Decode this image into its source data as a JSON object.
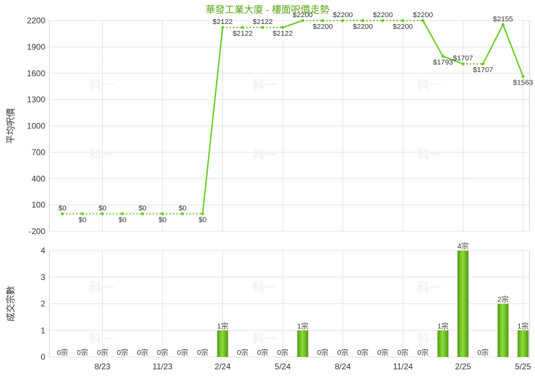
{
  "chart_data": [
    {
      "type": "line",
      "title": "華發工業大廈 - 樓面呎價走勢",
      "ylabel": "平均呎價",
      "ylim": [
        -200,
        2200
      ],
      "yticks": [
        -200,
        100,
        400,
        700,
        1000,
        1300,
        1600,
        1900,
        2200
      ],
      "xticks": [
        "8/23",
        "11/23",
        "2/24",
        "5/24",
        "8/24",
        "11/24",
        "2/25",
        "5/25"
      ],
      "grid": true,
      "line_color": "#66cc22",
      "values": [
        0,
        0,
        0,
        0,
        0,
        0,
        0,
        0,
        2122,
        2122,
        2122,
        2122,
        2200,
        2200,
        2200,
        2200,
        2200,
        2200,
        2200,
        1793,
        1707,
        1707,
        2155,
        1563
      ],
      "labels": [
        "$0",
        "$0",
        "$0",
        "$0",
        "$0",
        "$0",
        "$0",
        "$0",
        "$2122",
        "$2122",
        "$2122",
        "$2122",
        "$2200",
        "$2200",
        "$2200",
        "$2200",
        "$2200",
        "$2200",
        "$2200",
        "$1793",
        "$1707",
        "$1707",
        "$2155",
        "$1563"
      ]
    },
    {
      "type": "bar",
      "ylabel": "成交宗數",
      "ylim": [
        0,
        4
      ],
      "yticks": [
        0,
        1,
        2,
        3,
        4
      ],
      "xticks": [
        "8/23",
        "11/23",
        "2/24",
        "5/24",
        "8/24",
        "11/24",
        "2/25",
        "5/25"
      ],
      "grid": true,
      "bar_color": "#66bb22",
      "values": [
        0,
        0,
        0,
        0,
        0,
        0,
        0,
        0,
        1,
        0,
        0,
        0,
        1,
        0,
        0,
        0,
        0,
        0,
        0,
        1,
        4,
        0,
        2,
        1
      ],
      "labels": [
        "0宗",
        "0宗",
        "0宗",
        "0宗",
        "0宗",
        "0宗",
        "0宗",
        "0宗",
        "1宗",
        "0宗",
        "0宗",
        "0宗",
        "1宗",
        "0宗",
        "0宗",
        "0宗",
        "0宗",
        "0宗",
        "0宗",
        "1宗",
        "4宗",
        "0宗",
        "2宗",
        "1宗"
      ]
    }
  ],
  "watermark": "科一"
}
